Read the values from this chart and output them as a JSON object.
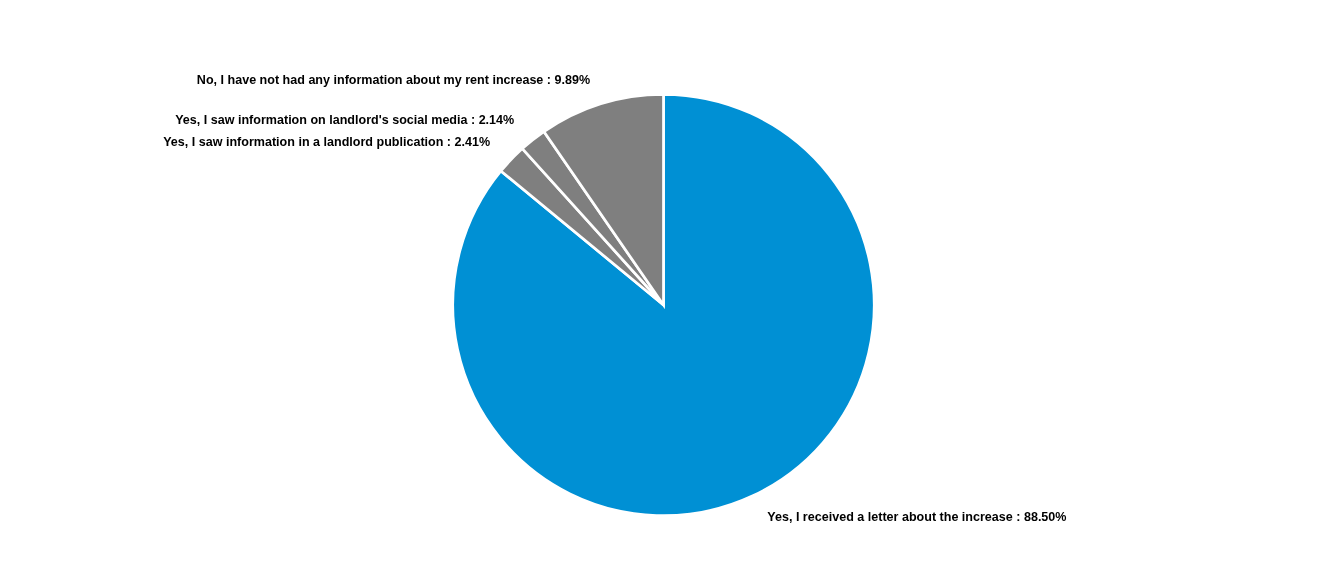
{
  "chart_data": {
    "type": "pie",
    "categories": [
      "Yes, I received a letter about the increase",
      "Yes, I saw information in a landlord publication",
      "Yes, I saw information on landlord's social media",
      "No, I have not had any information about my rent increase"
    ],
    "values": [
      88.5,
      2.41,
      2.14,
      9.89
    ],
    "colors": [
      "#0090d4",
      "#7f7f7f",
      "#7f7f7f",
      "#7f7f7f"
    ],
    "value_labels": [
      ": 88.50%",
      ": 2.41%",
      ": 2.14%",
      ": 9.89%"
    ]
  }
}
